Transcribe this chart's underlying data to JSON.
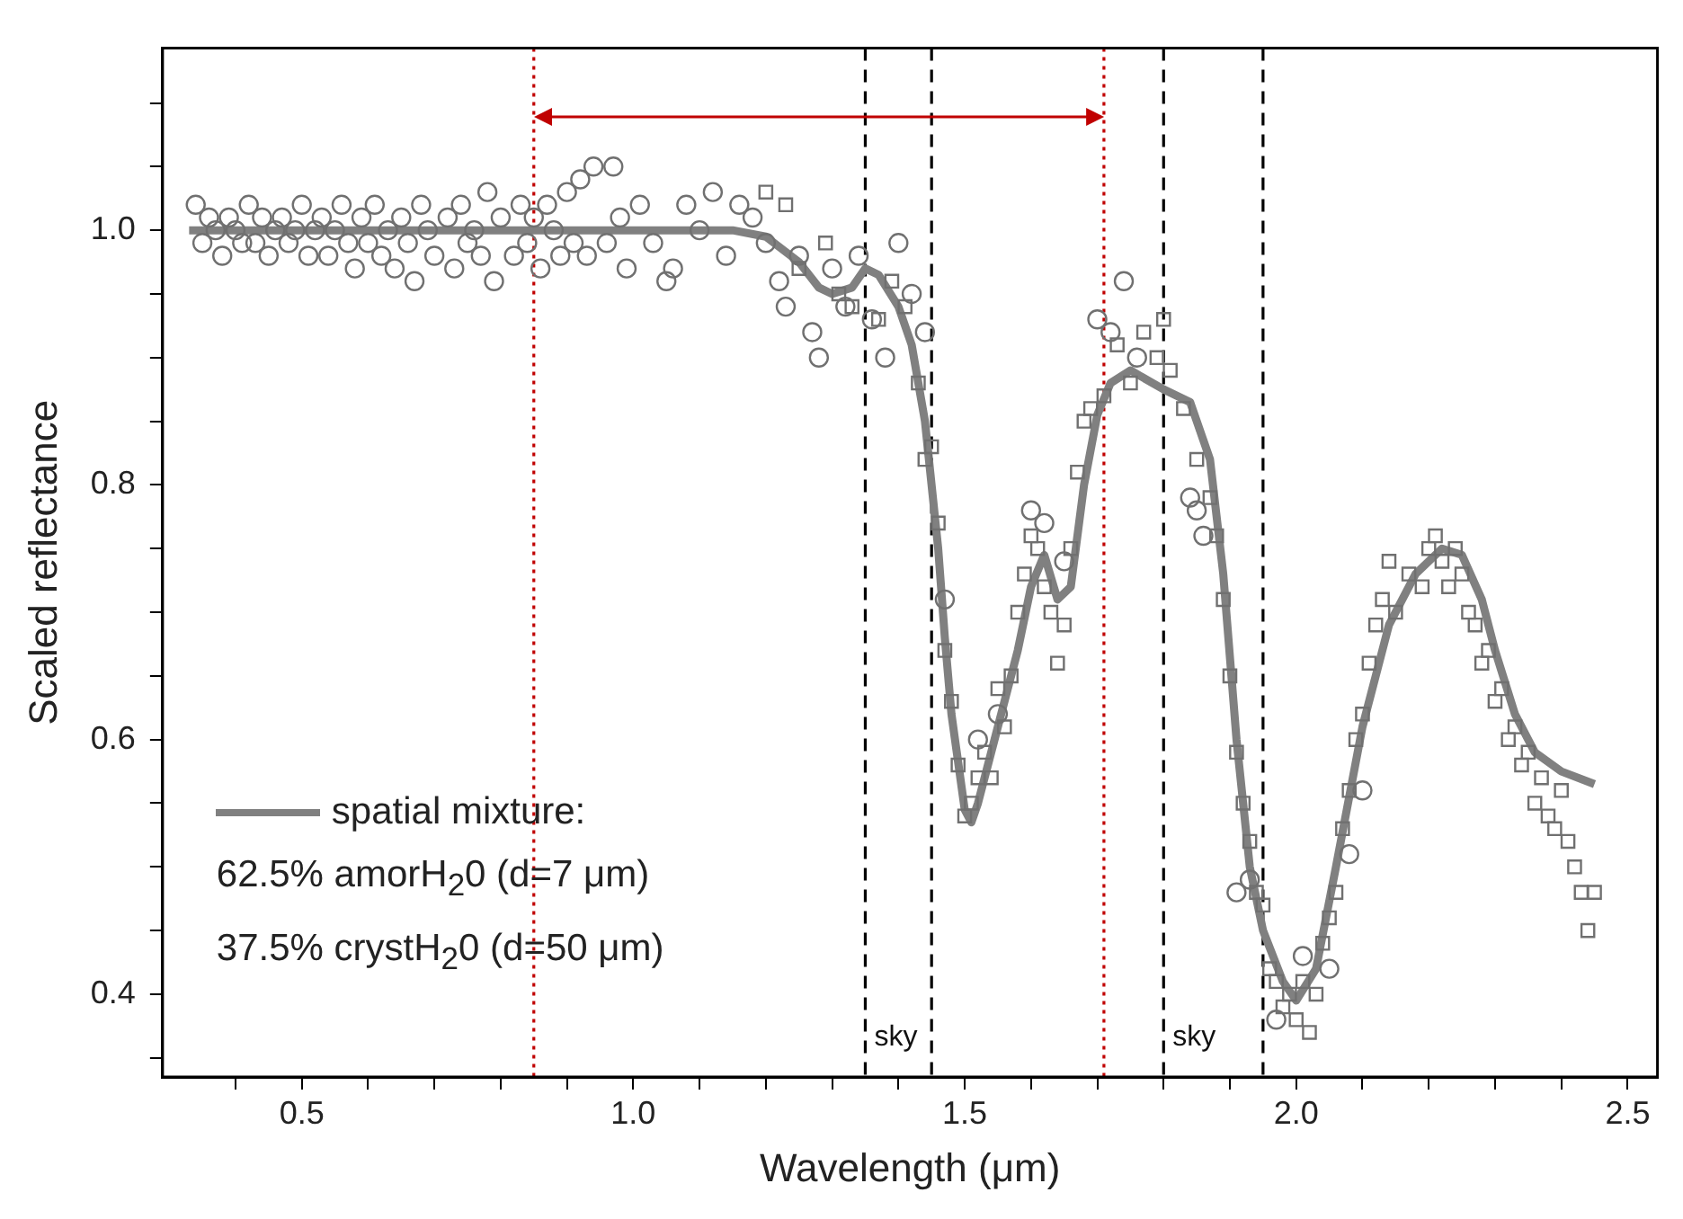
{
  "chart_data": {
    "type": "scatter",
    "xlabel": "Wavelength (μm)",
    "ylabel": "Scaled reflectance",
    "xlim": [
      0.29,
      2.545
    ],
    "ylim": [
      0.335,
      1.143
    ],
    "xticks": [
      {
        "value": 0.4,
        "label": null
      },
      0.5,
      {
        "value": 0.6,
        "label": null
      },
      {
        "value": 0.7,
        "label": null
      },
      {
        "value": 0.8,
        "label": null
      },
      {
        "value": 0.9,
        "label": null
      },
      {
        "value": 1.0,
        "label": "1.0"
      },
      {
        "value": 1.1,
        "label": null
      },
      {
        "value": 1.2,
        "label": null
      },
      {
        "value": 1.3,
        "label": null
      },
      {
        "value": 1.4,
        "label": null
      },
      1.5,
      {
        "value": 1.6,
        "label": null
      },
      {
        "value": 1.7,
        "label": null
      },
      {
        "value": 1.8,
        "label": null
      },
      {
        "value": 1.9,
        "label": null
      },
      {
        "value": 2.0,
        "label": "2.0"
      },
      {
        "value": 2.1,
        "label": null
      },
      {
        "value": 2.2,
        "label": null
      },
      {
        "value": 2.3,
        "label": null
      },
      {
        "value": 2.4,
        "label": null
      },
      2.5
    ],
    "yticks": [
      {
        "value": 0.35,
        "label": null
      },
      0.4,
      {
        "value": 0.45,
        "label": null
      },
      {
        "value": 0.5,
        "label": null
      },
      {
        "value": 0.55,
        "label": null
      },
      0.6,
      {
        "value": 0.65,
        "label": null
      },
      {
        "value": 0.7,
        "label": null
      },
      {
        "value": 0.75,
        "label": null
      },
      0.8,
      {
        "value": 0.85,
        "label": null
      },
      {
        "value": 0.9,
        "label": null
      },
      {
        "value": 0.95,
        "label": null
      },
      {
        "value": 1.0,
        "label": "1.0"
      },
      {
        "value": 1.05,
        "label": null
      },
      {
        "value": 1.1,
        "label": null
      }
    ],
    "grid": false,
    "legend": "bottom left",
    "series": [
      {
        "type": "scatter",
        "marker": "circle",
        "color": "#707070",
        "x": [
          0.34,
          0.35,
          0.36,
          0.37,
          0.38,
          0.39,
          0.4,
          0.41,
          0.42,
          0.43,
          0.44,
          0.45,
          0.46,
          0.47,
          0.48,
          0.49,
          0.5,
          0.51,
          0.52,
          0.53,
          0.54,
          0.55,
          0.56,
          0.57,
          0.58,
          0.59,
          0.6,
          0.61,
          0.62,
          0.63,
          0.64,
          0.65,
          0.66,
          0.67,
          0.68,
          0.69,
          0.7,
          0.72,
          0.73,
          0.74,
          0.75,
          0.76,
          0.77,
          0.78,
          0.79,
          0.8,
          0.82,
          0.83,
          0.84,
          0.85,
          0.86,
          0.87,
          0.88,
          0.89,
          0.9,
          0.91,
          0.92,
          0.93,
          0.94,
          0.96,
          0.97,
          0.98,
          0.99,
          1.01,
          1.03,
          1.05,
          1.06,
          1.08,
          1.1,
          1.12,
          1.14,
          1.16,
          1.18,
          1.2,
          1.22,
          1.23,
          1.25,
          1.27,
          1.28,
          1.3,
          1.32,
          1.34,
          1.36,
          1.38,
          1.4,
          1.42,
          1.44,
          1.47,
          1.52,
          1.55,
          1.6,
          1.62,
          1.65,
          1.7,
          1.72,
          1.74,
          1.76,
          1.84,
          1.85,
          1.86,
          1.91,
          1.93,
          1.97,
          2.01,
          2.05,
          2.08,
          2.1
        ],
        "values": [
          1.02,
          0.99,
          1.01,
          1.0,
          0.98,
          1.01,
          1.0,
          0.99,
          1.02,
          0.99,
          1.01,
          0.98,
          1.0,
          1.01,
          0.99,
          1.0,
          1.02,
          0.98,
          1.0,
          1.01,
          0.98,
          1.0,
          1.02,
          0.99,
          0.97,
          1.01,
          0.99,
          1.02,
          0.98,
          1.0,
          0.97,
          1.01,
          0.99,
          0.96,
          1.02,
          1.0,
          0.98,
          1.01,
          0.97,
          1.02,
          0.99,
          1.0,
          0.98,
          1.03,
          0.96,
          1.01,
          0.98,
          1.02,
          0.99,
          1.01,
          0.97,
          1.02,
          1.0,
          0.98,
          1.03,
          0.99,
          1.04,
          0.98,
          1.05,
          0.99,
          1.05,
          1.01,
          0.97,
          1.02,
          0.99,
          0.96,
          0.97,
          1.02,
          1.0,
          1.03,
          0.98,
          1.02,
          1.01,
          0.99,
          0.96,
          0.94,
          0.98,
          0.92,
          0.9,
          0.97,
          0.94,
          0.98,
          0.93,
          0.9,
          0.99,
          0.95,
          0.92,
          0.71,
          0.6,
          0.62,
          0.78,
          0.77,
          0.74,
          0.93,
          0.92,
          0.96,
          0.9,
          0.79,
          0.78,
          0.76,
          0.48,
          0.49,
          0.38,
          0.43,
          0.42,
          0.51,
          0.56
        ]
      },
      {
        "type": "scatter",
        "marker": "square",
        "color": "#707070",
        "x": [
          1.2,
          1.23,
          1.25,
          1.29,
          1.31,
          1.33,
          1.37,
          1.39,
          1.41,
          1.43,
          1.44,
          1.45,
          1.46,
          1.47,
          1.48,
          1.49,
          1.5,
          1.51,
          1.52,
          1.53,
          1.54,
          1.55,
          1.56,
          1.57,
          1.58,
          1.59,
          1.6,
          1.61,
          1.62,
          1.63,
          1.64,
          1.65,
          1.66,
          1.67,
          1.68,
          1.69,
          1.71,
          1.73,
          1.75,
          1.77,
          1.79,
          1.8,
          1.81,
          1.83,
          1.85,
          1.87,
          1.88,
          1.89,
          1.9,
          1.91,
          1.92,
          1.93,
          1.94,
          1.95,
          1.96,
          1.97,
          1.98,
          1.99,
          2.0,
          2.01,
          2.02,
          2.03,
          2.04,
          2.05,
          2.06,
          2.07,
          2.08,
          2.09,
          2.1,
          2.11,
          2.12,
          2.13,
          2.14,
          2.15,
          2.17,
          2.19,
          2.2,
          2.21,
          2.22,
          2.23,
          2.24,
          2.25,
          2.26,
          2.27,
          2.28,
          2.29,
          2.3,
          2.31,
          2.32,
          2.33,
          2.34,
          2.35,
          2.36,
          2.37,
          2.38,
          2.39,
          2.4,
          2.41,
          2.42,
          2.43,
          2.44,
          2.45
        ],
        "values": [
          1.03,
          1.02,
          0.97,
          0.99,
          0.95,
          0.94,
          0.93,
          0.96,
          0.94,
          0.88,
          0.82,
          0.83,
          0.77,
          0.67,
          0.63,
          0.58,
          0.54,
          0.55,
          0.57,
          0.59,
          0.57,
          0.64,
          0.61,
          0.65,
          0.7,
          0.73,
          0.76,
          0.75,
          0.72,
          0.7,
          0.66,
          0.69,
          0.75,
          0.81,
          0.85,
          0.86,
          0.87,
          0.91,
          0.88,
          0.92,
          0.9,
          0.93,
          0.89,
          0.86,
          0.82,
          0.79,
          0.76,
          0.71,
          0.65,
          0.59,
          0.55,
          0.52,
          0.48,
          0.47,
          0.42,
          0.41,
          0.39,
          0.4,
          0.38,
          0.41,
          0.37,
          0.4,
          0.44,
          0.46,
          0.48,
          0.53,
          0.56,
          0.6,
          0.62,
          0.66,
          0.69,
          0.71,
          0.74,
          0.7,
          0.73,
          0.72,
          0.75,
          0.76,
          0.74,
          0.72,
          0.75,
          0.73,
          0.7,
          0.69,
          0.66,
          0.67,
          0.63,
          0.64,
          0.6,
          0.61,
          0.58,
          0.59,
          0.55,
          0.57,
          0.54,
          0.53,
          0.56,
          0.52,
          0.5,
          0.48,
          0.45,
          0.48
        ]
      },
      {
        "type": "line",
        "marker": "none",
        "line_style": "solid",
        "name": "spatial mixture:",
        "color": "#808080",
        "x": [
          0.33,
          0.6,
          0.9,
          1.15,
          1.2,
          1.25,
          1.28,
          1.3,
          1.33,
          1.35,
          1.37,
          1.4,
          1.42,
          1.44,
          1.46,
          1.47,
          1.48,
          1.5,
          1.51,
          1.52,
          1.55,
          1.58,
          1.6,
          1.62,
          1.64,
          1.66,
          1.68,
          1.7,
          1.72,
          1.75,
          1.8,
          1.84,
          1.87,
          1.89,
          1.91,
          1.93,
          1.95,
          1.98,
          2.0,
          2.03,
          2.06,
          2.1,
          2.14,
          2.18,
          2.22,
          2.25,
          2.28,
          2.3,
          2.33,
          2.36,
          2.4,
          2.45
        ],
        "values": [
          1.0,
          1.0,
          1.0,
          1.0,
          0.995,
          0.975,
          0.955,
          0.95,
          0.955,
          0.97,
          0.965,
          0.94,
          0.91,
          0.85,
          0.75,
          0.68,
          0.62,
          0.545,
          0.535,
          0.55,
          0.61,
          0.67,
          0.72,
          0.745,
          0.71,
          0.72,
          0.8,
          0.855,
          0.88,
          0.89,
          0.875,
          0.865,
          0.82,
          0.73,
          0.6,
          0.5,
          0.45,
          0.41,
          0.395,
          0.42,
          0.5,
          0.61,
          0.69,
          0.73,
          0.75,
          0.745,
          0.71,
          0.67,
          0.62,
          0.59,
          0.575,
          0.565
        ]
      }
    ],
    "ref_lines": [
      {
        "axis": "x",
        "value": 0.85,
        "color": "#c00000",
        "line_style": "dotted"
      },
      {
        "axis": "x",
        "value": 1.71,
        "color": "#c00000",
        "line_style": "dotted"
      },
      {
        "axis": "x",
        "value": 1.35,
        "color": "#000000",
        "line_style": "dashed",
        "label": "sky"
      },
      {
        "axis": "x",
        "value": 1.45,
        "color": "#000000",
        "line_style": "dashed"
      },
      {
        "axis": "x",
        "value": 1.8,
        "color": "#000000",
        "line_style": "dashed",
        "label": "sky"
      },
      {
        "axis": "x",
        "value": 1.95,
        "color": "#000000",
        "line_style": "dashed"
      }
    ],
    "annotations": [
      "62.5% amorH$_{2}$0 (d=7 μm)",
      "37.5% crystH$_{2}$0 (d=50 μm)"
    ]
  }
}
